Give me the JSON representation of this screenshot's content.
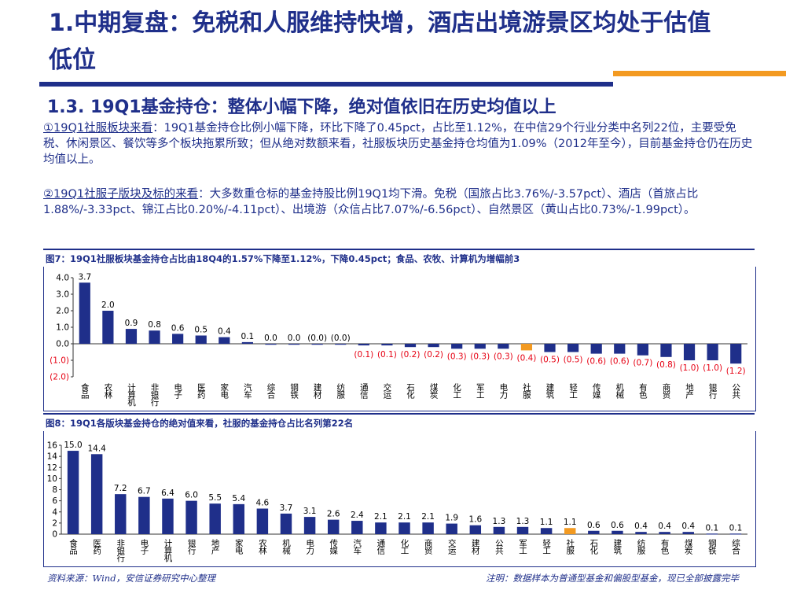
{
  "header": {
    "title": "1.中期复盘：免税和人服维持快增，酒店出境游景区均处于估值低位",
    "subtitle": "1.3. 19Q1基金持仓：整体小幅下降，绝对值依旧在历史均值以上"
  },
  "paragraphs": [
    {
      "lead": "①19Q1社服板块来看",
      "body": "：19Q1基金持仓比例小幅下降，环比下降了0.45pct，占比至1.12%，在中信29个行业分类中名列22位，主要受免税、休闲景区、餐饮等多个板块拖累所致；但从绝对数额来看，社服板块历史基金持仓均值为1.09%（2012年至今），目前基金持仓仍在历史均值以上。"
    },
    {
      "lead": "②19Q1社服子版块及标的来看",
      "body": "：大多数重仓标的基金持股比例19Q1均下滑。免税（国旅占比3.76%/-3.57pct）、酒店（首旅占比1.88%/-3.33pct、锦江占比0.20%/-4.11pct）、出境游（众信占比7.07%/-6.56pct）、自然景区（黄山占比0.73%/-1.99pct）。"
    }
  ],
  "footer": {
    "source": "资料来源：Wind，安信证券研究中心整理",
    "note": "注明：数据样本为普通型基金和偏股型基金，现已全部披露完毕"
  },
  "colors": {
    "navy": "#1f2f8a",
    "highlight": "#f39a21",
    "negative_label": "#e60012"
  },
  "chart_data": [
    {
      "type": "bar",
      "title": "图7：19Q1社服板块基金持仓占比由18Q4的1.57%下降至1.12%，下降0.45pct；食品、农牧、计算机为增幅前3",
      "categories": [
        "食品",
        "农林",
        "计算机",
        "非银行",
        "电子",
        "医药",
        "家电",
        "汽车",
        "综合",
        "钢铁",
        "建材",
        "纺服",
        "通信",
        "交运",
        "石化",
        "煤炭",
        "化工",
        "军工",
        "电力",
        "社服",
        "建筑",
        "轻工",
        "传媒",
        "机械",
        "有色",
        "商贸",
        "地产",
        "银行",
        "公共"
      ],
      "values": [
        3.7,
        2.0,
        0.9,
        0.8,
        0.6,
        0.5,
        0.4,
        0.1,
        0.0,
        0.0,
        -0.0,
        -0.0,
        -0.1,
        -0.1,
        -0.2,
        -0.2,
        -0.3,
        -0.3,
        -0.3,
        -0.4,
        -0.5,
        -0.5,
        -0.6,
        -0.6,
        -0.7,
        -0.8,
        -1.0,
        -1.0,
        -1.2
      ],
      "labels": [
        "3.7",
        "2.0",
        "0.9",
        "0.8",
        "0.6",
        "0.5",
        "0.4",
        "0.1",
        "0.0",
        "0.0",
        "(0.0)",
        "(0.0)",
        "(0.1)",
        "(0.1)",
        "(0.2)",
        "(0.2)",
        "(0.3)",
        "(0.3)",
        "(0.3)",
        "(0.4)",
        "(0.5)",
        "(0.5)",
        "(0.6)",
        "(0.6)",
        "(0.7)",
        "(0.8)",
        "(1.0)",
        "(1.0)",
        "(1.2)"
      ],
      "highlight_category": "社服",
      "ylim": [
        -2.0,
        4.0
      ],
      "yticks": [
        4.0,
        3.0,
        2.0,
        1.0,
        0.0,
        -1.0,
        -2.0
      ],
      "ytick_labels": [
        "4.0",
        "3.0",
        "2.0",
        "1.0",
        "0.0",
        "(1.0)",
        "(2.0)"
      ],
      "grid": false,
      "legend": "none"
    },
    {
      "type": "bar",
      "title": "图8：19Q1各版块基金持仓的绝对值来看，社服的基金持仓占比名列第22名",
      "categories": [
        "食品",
        "医药",
        "非银行",
        "电子",
        "计算机",
        "银行",
        "地产",
        "家电",
        "农林",
        "机械",
        "电力",
        "传媒",
        "汽车",
        "通信",
        "化工",
        "商贸",
        "交运",
        "建材",
        "公共",
        "军工",
        "轻工",
        "社服",
        "石化",
        "建筑",
        "纺服",
        "有色",
        "煤炭",
        "钢铁",
        "综合"
      ],
      "values": [
        15.0,
        14.4,
        7.2,
        6.7,
        6.4,
        6.0,
        5.5,
        5.4,
        4.6,
        3.7,
        3.1,
        2.6,
        2.4,
        2.1,
        2.1,
        2.1,
        1.9,
        1.6,
        1.3,
        1.3,
        1.1,
        1.1,
        0.6,
        0.6,
        0.4,
        0.4,
        0.4,
        0.1,
        0.1
      ],
      "labels": [
        "15.0",
        "14.4",
        "7.2",
        "6.7",
        "6.4",
        "6.0",
        "5.5",
        "5.4",
        "4.6",
        "3.7",
        "3.1",
        "2.6",
        "2.4",
        "2.1",
        "2.1",
        "2.1",
        "1.9",
        "1.6",
        "1.3",
        "1.3",
        "1.1",
        "1.1",
        "0.6",
        "0.6",
        "0.4",
        "0.4",
        "0.4",
        "0.1",
        "0.1"
      ],
      "highlight_category": "社服",
      "ylim": [
        0,
        16
      ],
      "yticks": [
        16,
        14,
        12,
        10,
        8,
        6,
        4,
        2,
        0
      ],
      "ytick_labels": [
        "16",
        "14",
        "12",
        "10",
        "8",
        "6",
        "4",
        "2",
        "0"
      ],
      "grid": false,
      "legend": "none"
    }
  ]
}
